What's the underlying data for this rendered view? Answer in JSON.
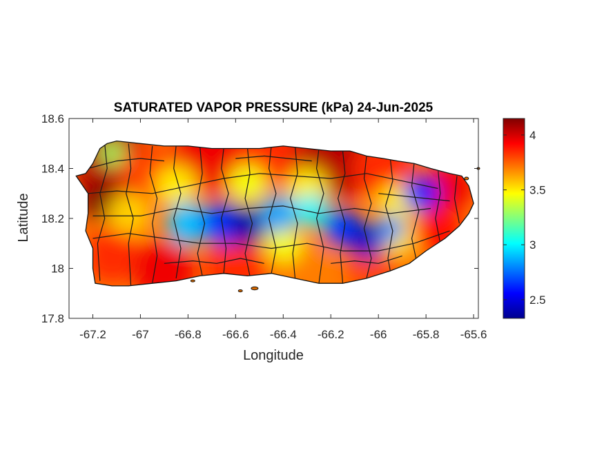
{
  "chart_data": {
    "type": "heatmap",
    "title": "SATURATED VAPOR PRESSURE (kPa) 24-Jun-2025",
    "xlabel": "Longitude",
    "ylabel": "Latitude",
    "xlim": [
      -67.3,
      -65.58
    ],
    "ylim": [
      17.8,
      18.6
    ],
    "xticks": [
      "-67.2",
      "-67",
      "-66.8",
      "-66.6",
      "-66.4",
      "-66.2",
      "-66",
      "-65.8",
      "-65.6"
    ],
    "yticks": [
      "18.6",
      "18.4",
      "18.2",
      "18",
      "17.8"
    ],
    "colorbar": {
      "ticks": [
        "4",
        "3.5",
        "3",
        "2.5"
      ],
      "min": 2.33,
      "max": 4.15,
      "colormap": "jet"
    },
    "hotspots": [
      {
        "lon": -66.55,
        "lat": 18.17,
        "value": 2.35
      },
      {
        "lon": -66.75,
        "lat": 18.15,
        "value": 2.7
      },
      {
        "lon": -66.15,
        "lat": 18.15,
        "value": 2.6
      },
      {
        "lon": -66.05,
        "lat": 18.1,
        "value": 2.4
      },
      {
        "lon": -65.8,
        "lat": 18.3,
        "value": 2.6
      },
      {
        "lon": -67.17,
        "lat": 18.27,
        "value": 4.15
      },
      {
        "lon": -66.7,
        "lat": 18.44,
        "value": 4.05
      },
      {
        "lon": -66.2,
        "lat": 18.4,
        "value": 4.1
      },
      {
        "lon": -66.85,
        "lat": 17.98,
        "value": 4.0
      }
    ]
  }
}
